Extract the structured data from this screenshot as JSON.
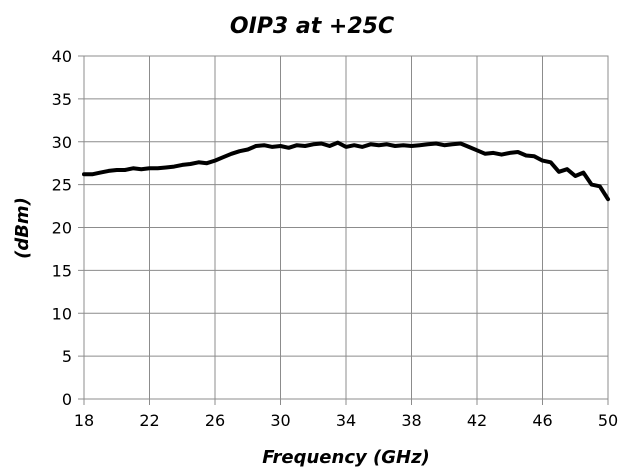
{
  "chart_data": {
    "type": "line",
    "title": "OIP3 at +25C",
    "xlabel": "Frequency (GHz)",
    "ylabel": "(dBm)",
    "xlim": [
      18,
      50
    ],
    "ylim": [
      0,
      40
    ],
    "xticks": [
      18,
      22,
      26,
      30,
      34,
      38,
      42,
      46,
      50
    ],
    "yticks": [
      0,
      5,
      10,
      15,
      20,
      25,
      30,
      35,
      40
    ],
    "grid": true,
    "series": [
      {
        "color": "#000000",
        "points": [
          [
            18.0,
            26.2
          ],
          [
            18.5,
            26.2
          ],
          [
            19.0,
            26.4
          ],
          [
            19.5,
            26.6
          ],
          [
            20.0,
            26.7
          ],
          [
            20.5,
            26.7
          ],
          [
            21.0,
            26.9
          ],
          [
            21.5,
            26.8
          ],
          [
            22.0,
            26.9
          ],
          [
            22.5,
            26.9
          ],
          [
            23.0,
            27.0
          ],
          [
            23.5,
            27.1
          ],
          [
            24.0,
            27.3
          ],
          [
            24.5,
            27.4
          ],
          [
            25.0,
            27.6
          ],
          [
            25.5,
            27.5
          ],
          [
            26.0,
            27.8
          ],
          [
            26.5,
            28.2
          ],
          [
            27.0,
            28.6
          ],
          [
            27.5,
            28.9
          ],
          [
            28.0,
            29.1
          ],
          [
            28.5,
            29.5
          ],
          [
            29.0,
            29.6
          ],
          [
            29.5,
            29.4
          ],
          [
            30.0,
            29.5
          ],
          [
            30.5,
            29.3
          ],
          [
            31.0,
            29.6
          ],
          [
            31.5,
            29.5
          ],
          [
            32.0,
            29.7
          ],
          [
            32.5,
            29.8
          ],
          [
            33.0,
            29.5
          ],
          [
            33.5,
            29.9
          ],
          [
            34.0,
            29.4
          ],
          [
            34.5,
            29.6
          ],
          [
            35.0,
            29.4
          ],
          [
            35.5,
            29.7
          ],
          [
            36.0,
            29.6
          ],
          [
            36.5,
            29.7
          ],
          [
            37.0,
            29.5
          ],
          [
            37.5,
            29.6
          ],
          [
            38.0,
            29.5
          ],
          [
            38.5,
            29.6
          ],
          [
            39.0,
            29.7
          ],
          [
            39.5,
            29.8
          ],
          [
            40.0,
            29.6
          ],
          [
            40.5,
            29.7
          ],
          [
            41.0,
            29.8
          ],
          [
            41.5,
            29.4
          ],
          [
            42.0,
            29.0
          ],
          [
            42.5,
            28.6
          ],
          [
            43.0,
            28.7
          ],
          [
            43.5,
            28.5
          ],
          [
            44.0,
            28.7
          ],
          [
            44.5,
            28.8
          ],
          [
            45.0,
            28.4
          ],
          [
            45.5,
            28.3
          ],
          [
            46.0,
            27.8
          ],
          [
            46.5,
            27.6
          ],
          [
            47.0,
            26.5
          ],
          [
            47.5,
            26.8
          ],
          [
            48.0,
            26.0
          ],
          [
            48.5,
            26.4
          ],
          [
            49.0,
            25.0
          ],
          [
            49.5,
            24.8
          ],
          [
            50.0,
            23.3
          ]
        ]
      }
    ]
  }
}
